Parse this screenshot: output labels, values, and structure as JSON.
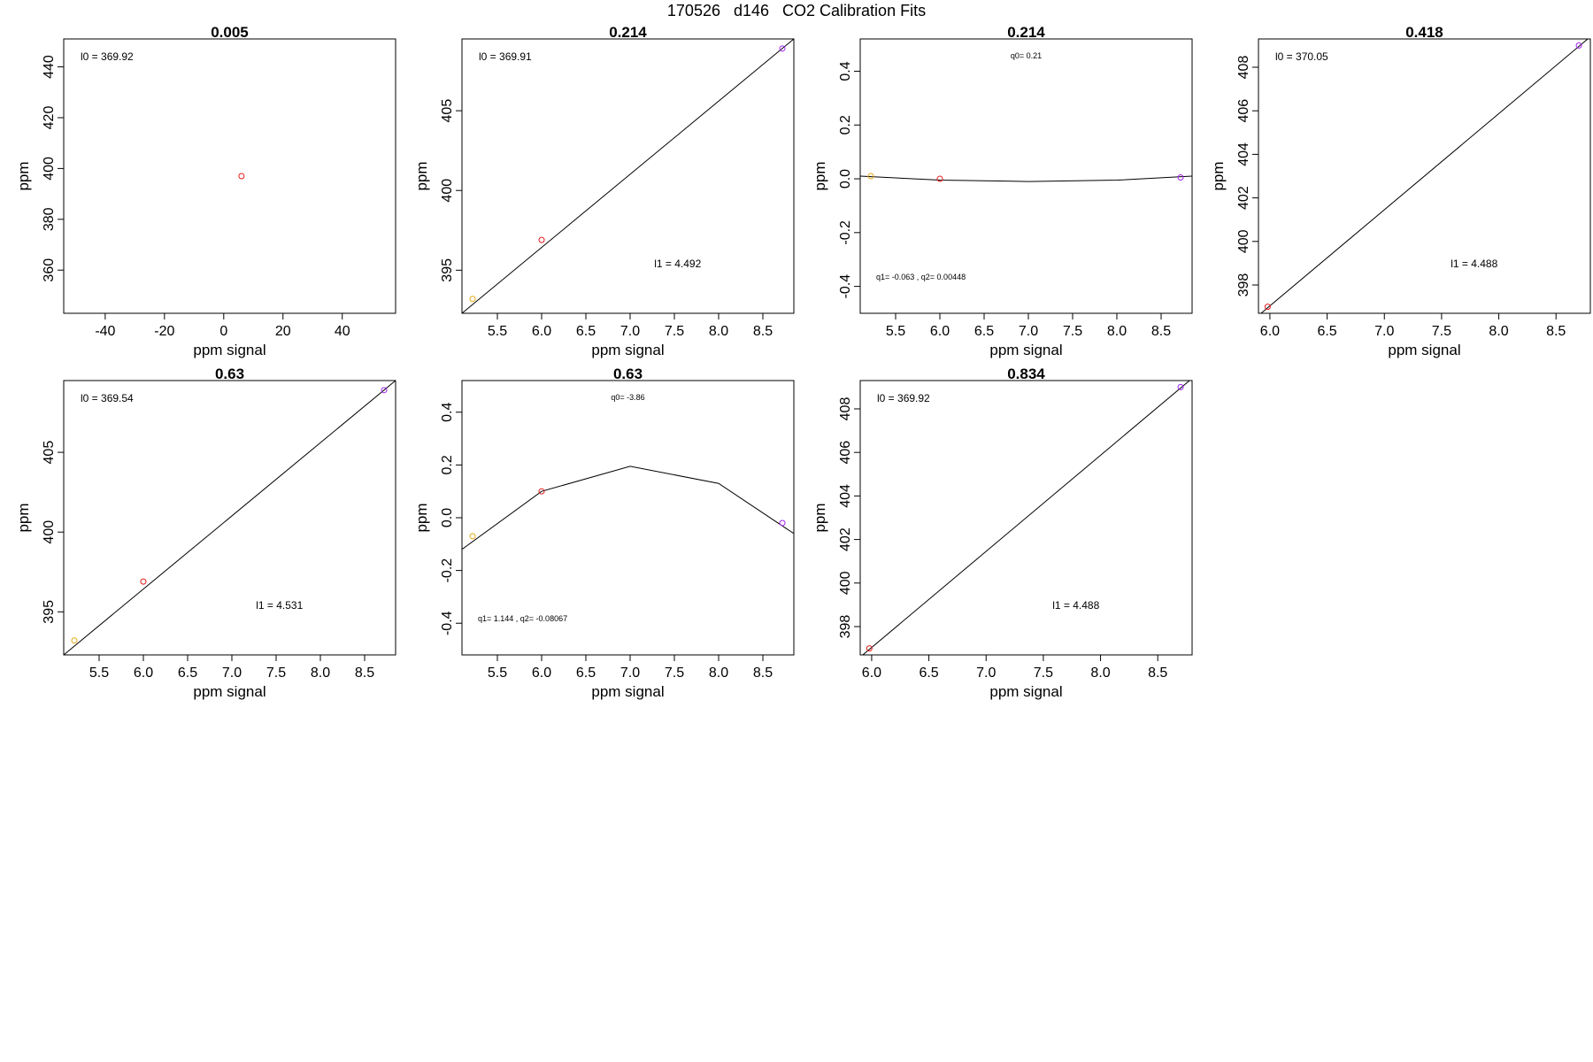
{
  "title": "170526   d146   CO2 Calibration Fits",
  "chart_data": [
    {
      "type": "scatter",
      "title": "0.005",
      "xlabel": "ppm signal",
      "ylabel": "ppm",
      "xlim": [
        -54,
        58
      ],
      "ylim": [
        343,
        451
      ],
      "xticks": [
        "-40",
        "-20",
        "0",
        "20",
        "40"
      ],
      "yticks": [
        "360",
        "380",
        "400",
        "420",
        "440"
      ],
      "points": [
        {
          "x": 6,
          "y": 397,
          "color": "#e41a1c"
        }
      ],
      "fit": null,
      "annotations": [
        {
          "text": "l0 =  369.92",
          "pos": "top-left"
        }
      ]
    },
    {
      "type": "scatter",
      "title": "0.214",
      "xlabel": "ppm signal",
      "ylabel": "ppm",
      "xlim": [
        5.1,
        8.85
      ],
      "ylim": [
        392.3,
        409.5
      ],
      "xticks": [
        "5.5",
        "6.0",
        "6.5",
        "7.0",
        "7.5",
        "8.0",
        "8.5"
      ],
      "yticks": [
        "395",
        "400",
        "405"
      ],
      "points": [
        {
          "x": 5.22,
          "y": 393.2,
          "color": "#e6a817"
        },
        {
          "x": 6.0,
          "y": 396.9,
          "color": "#e41a1c"
        },
        {
          "x": 8.72,
          "y": 408.9,
          "color": "#a020f0"
        }
      ],
      "fit": {
        "x": [
          5.1,
          8.85
        ],
        "y": [
          392.3,
          409.5
        ]
      },
      "annotations": [
        {
          "text": "l0 =  369.91",
          "pos": "top-left"
        },
        {
          "text": "l1 =  4.492",
          "pos": "lower-center"
        }
      ]
    },
    {
      "type": "scatter",
      "title": "0.214",
      "xlabel": "ppm signal",
      "ylabel": "ppm",
      "xlim": [
        5.1,
        8.85
      ],
      "ylim": [
        -0.5,
        0.52
      ],
      "xticks": [
        "5.5",
        "6.0",
        "6.5",
        "7.0",
        "7.5",
        "8.0",
        "8.5"
      ],
      "yticks": [
        "-0.4",
        "-0.2",
        "0.0",
        "0.2",
        "0.4"
      ],
      "points": [
        {
          "x": 5.22,
          "y": 0.01,
          "color": "#e6a817"
        },
        {
          "x": 6.0,
          "y": -0.0,
          "color": "#e41a1c"
        },
        {
          "x": 8.72,
          "y": 0.005,
          "color": "#a020f0"
        }
      ],
      "fit": {
        "x": [
          5.1,
          6.0,
          7.0,
          8.0,
          8.85
        ],
        "y": [
          0.01,
          -0.005,
          -0.01,
          -0.005,
          0.01
        ]
      },
      "annotations": [
        {
          "text": "q0= 0.21",
          "pos": "top-center",
          "small": true
        },
        {
          "text": "q1= -0.063 , q2= 0.00448",
          "pos": "bottom-left",
          "small": true
        }
      ]
    },
    {
      "type": "scatter",
      "title": "0.418",
      "xlabel": "ppm signal",
      "ylabel": "ppm",
      "xlim": [
        5.9,
        8.8
      ],
      "ylim": [
        396.7,
        409.3
      ],
      "xticks": [
        "6.0",
        "6.5",
        "7.0",
        "7.5",
        "8.0",
        "8.5"
      ],
      "yticks": [
        "398",
        "400",
        "402",
        "404",
        "406",
        "408"
      ],
      "points": [
        {
          "x": 5.98,
          "y": 397.0,
          "color": "#e41a1c"
        },
        {
          "x": 8.7,
          "y": 409.0,
          "color": "#a020f0"
        }
      ],
      "fit": {
        "x": [
          5.9,
          8.8
        ],
        "y": [
          396.6,
          409.4
        ]
      },
      "annotations": [
        {
          "text": "l0 =  370.05",
          "pos": "top-left"
        },
        {
          "text": "l1 =  4.488",
          "pos": "lower-center"
        }
      ]
    },
    {
      "type": "scatter",
      "title": "0.63",
      "xlabel": "ppm signal",
      "ylabel": "ppm",
      "xlim": [
        5.1,
        8.85
      ],
      "ylim": [
        392.3,
        409.5
      ],
      "xticks": [
        "5.5",
        "6.0",
        "6.5",
        "7.0",
        "7.5",
        "8.0",
        "8.5"
      ],
      "yticks": [
        "395",
        "400",
        "405"
      ],
      "points": [
        {
          "x": 5.22,
          "y": 393.2,
          "color": "#e6a817"
        },
        {
          "x": 6.0,
          "y": 396.9,
          "color": "#e41a1c"
        },
        {
          "x": 8.72,
          "y": 408.9,
          "color": "#a020f0"
        }
      ],
      "fit": {
        "x": [
          5.1,
          8.85
        ],
        "y": [
          392.3,
          409.5
        ]
      },
      "annotations": [
        {
          "text": "l0 =  369.54",
          "pos": "top-left"
        },
        {
          "text": "l1 =  4.531",
          "pos": "lower-center"
        }
      ]
    },
    {
      "type": "scatter",
      "title": "0.63",
      "xlabel": "ppm signal",
      "ylabel": "ppm",
      "xlim": [
        5.1,
        8.85
      ],
      "ylim": [
        -0.52,
        0.52
      ],
      "xticks": [
        "5.5",
        "6.0",
        "6.5",
        "7.0",
        "7.5",
        "8.0",
        "8.5"
      ],
      "yticks": [
        "-0.4",
        "-0.2",
        "0.0",
        "0.2",
        "0.4"
      ],
      "points": [
        {
          "x": 5.22,
          "y": -0.07,
          "color": "#e6a817"
        },
        {
          "x": 6.0,
          "y": 0.1,
          "color": "#e41a1c"
        },
        {
          "x": 8.72,
          "y": -0.02,
          "color": "#a020f0"
        }
      ],
      "fit": {
        "x": [
          5.1,
          6.0,
          7.0,
          8.0,
          8.85
        ],
        "y": [
          -0.12,
          0.1,
          0.195,
          0.13,
          -0.06
        ]
      },
      "annotations": [
        {
          "text": "q0= -3.86",
          "pos": "top-center",
          "small": true
        },
        {
          "text": "q1= 1.144 , q2= -0.08067",
          "pos": "bottom-left",
          "small": true
        }
      ]
    },
    {
      "type": "scatter",
      "title": "0.834",
      "xlabel": "ppm signal",
      "ylabel": "ppm",
      "xlim": [
        5.9,
        8.8
      ],
      "ylim": [
        396.7,
        409.3
      ],
      "xticks": [
        "6.0",
        "6.5",
        "7.0",
        "7.5",
        "8.0",
        "8.5"
      ],
      "yticks": [
        "398",
        "400",
        "402",
        "404",
        "406",
        "408"
      ],
      "points": [
        {
          "x": 5.98,
          "y": 397.0,
          "color": "#e41a1c"
        },
        {
          "x": 8.7,
          "y": 409.0,
          "color": "#a020f0"
        }
      ],
      "fit": {
        "x": [
          5.9,
          8.8
        ],
        "y": [
          396.6,
          409.4
        ]
      },
      "annotations": [
        {
          "text": "l0 =  369.92",
          "pos": "top-left"
        },
        {
          "text": "l1 =  4.488",
          "pos": "lower-center"
        }
      ]
    }
  ]
}
